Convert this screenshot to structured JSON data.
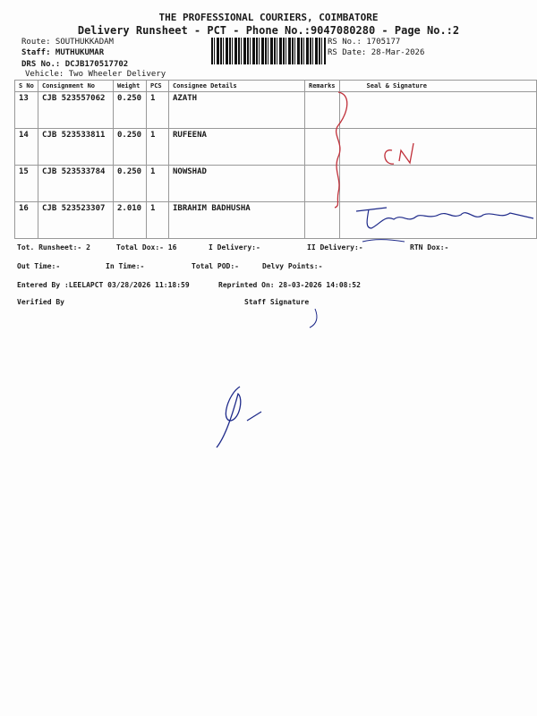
{
  "header": {
    "title": "THE PROFESSIONAL COURIERS, COIMBATORE",
    "subtitle": "Delivery Runsheet - PCT - Phone No.:9047080280 - Page No.:2",
    "route": "Route: SOUTHUKKADAM",
    "staff": "Staff: MUTHUKUMAR",
    "drs_no": "DRS No.: DCJB170517702",
    "vehicle": "Vehicle: Two Wheeler Delivery",
    "rs_no": "RS No.: 1705177",
    "rs_date": "RS Date: 28-Mar-2026"
  },
  "table": {
    "columns": [
      "S No",
      "Consignment No",
      "Weight",
      "PCS",
      "Consignee Details",
      "Remarks",
      "Seal & Signature"
    ],
    "rows": [
      {
        "sno": "13",
        "consignment": "CJB 523557062",
        "weight": "0.250",
        "pcs": "1",
        "consignee": "AZATH"
      },
      {
        "sno": "14",
        "consignment": "CJB 523533811",
        "weight": "0.250",
        "pcs": "1",
        "consignee": "RUFEENA"
      },
      {
        "sno": "15",
        "consignment": "CJB 523533784",
        "weight": "0.250",
        "pcs": "1",
        "consignee": "NOWSHAD"
      },
      {
        "sno": "16",
        "consignment": "CJB 523523307",
        "weight": "2.010",
        "pcs": "1",
        "consignee": "IBRAHIM BADHUSHA"
      }
    ]
  },
  "summary": {
    "tot_runsheet": "Tot. Runsheet:- 2",
    "total_dox": "Total Dox:-  16",
    "i_delivery": "I Delivery:-",
    "ii_delivery": "II Delivery:-",
    "rtn_dox": "RTN Dox:-",
    "out_time": "Out Time:-",
    "in_time": "In Time:-",
    "total_pod": "Total POD:-",
    "delvy_points": "Delvy Points:-",
    "entered_by": "Entered By :LEELAPCT 03/28/2026 11:18:59",
    "reprinted_on": "Reprinted On: 28-03-2026 14:08:52",
    "verified_by": "Verified By",
    "staff_signature": "Staff Signature"
  },
  "colors": {
    "ink_red": "#c0303a",
    "ink_blue": "#1e2a8a"
  }
}
